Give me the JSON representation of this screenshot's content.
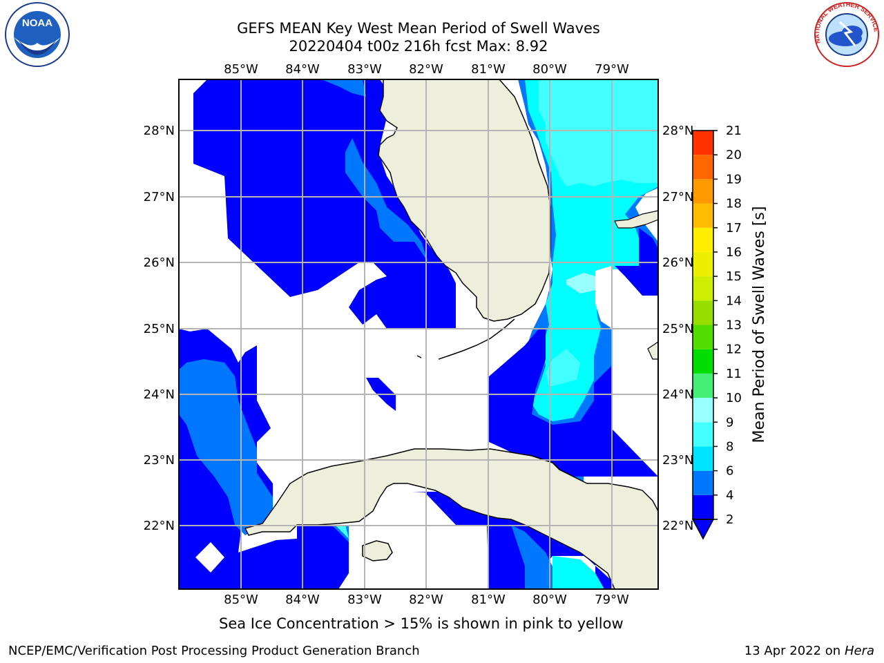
{
  "title_line1": "GEFS MEAN Key West Mean Period of Swell Waves",
  "title_line2": "20220404 t00z 216h fcst   Max: 8.92",
  "lon_labels": [
    "85°W",
    "84°W",
    "83°W",
    "82°W",
    "81°W",
    "80°W",
    "79°W"
  ],
  "lat_labels": [
    "28°N",
    "27°N",
    "26°N",
    "25°N",
    "24°N",
    "23°N",
    "22°N"
  ],
  "colorbar": {
    "label": "Mean Period of Swell Waves [s]",
    "ticks": [
      "2",
      "4",
      "6",
      "8",
      "9",
      "10",
      "11",
      "12",
      "13",
      "14",
      "15",
      "16",
      "17",
      "18",
      "19",
      "20",
      "21"
    ],
    "colors": [
      "#0000ff",
      "#0077ff",
      "#00e5ff",
      "#44ffff",
      "#99ffff",
      "#44ee77",
      "#00dd00",
      "#55dd00",
      "#99dd00",
      "#ccee00",
      "#eeee00",
      "#ffee00",
      "#ffbb00",
      "#ff9900",
      "#ff6600",
      "#ff3300",
      "#ff0000"
    ]
  },
  "note": "Sea Ice Concentration > 15% is shown in pink to yellow",
  "footer_left": "NCEP/EMC/Verification Post Processing Product Generation Branch",
  "footer_right_date": "13 Apr 2022 on ",
  "footer_right_host": "Hera",
  "logos": {
    "noaa_text": "NOAA",
    "nws_text": "NATIONAL WEATHER SERVICE"
  },
  "colors": {
    "land": "#eeeedd",
    "grid": "#b4b4b4",
    "blue": "#0000ff",
    "mid_blue": "#0077ff",
    "cyan": "#00ffff",
    "light_cyan": "#44ffff"
  }
}
